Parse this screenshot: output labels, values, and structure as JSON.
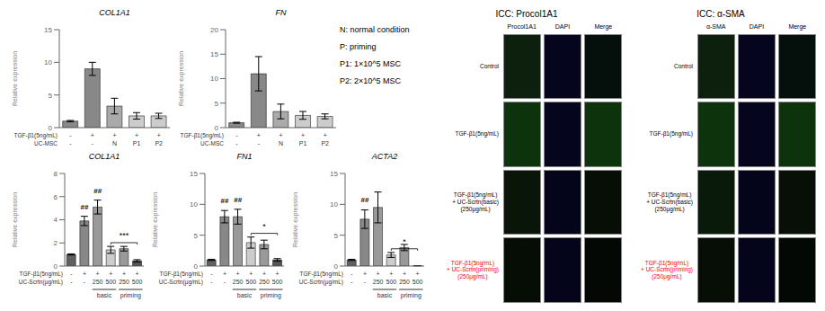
{
  "chart_data": [
    {
      "type": "bar",
      "title": "COL1A1",
      "y_label": "Relative expression",
      "categories": [
        [
          "-",
          "-"
        ],
        [
          "+",
          "-"
        ],
        [
          "+",
          "N"
        ],
        [
          "+",
          "P1"
        ],
        [
          "+",
          "P2"
        ]
      ],
      "category_rows": [
        "TGF-β1(5ng/mL)",
        "UC-MSC"
      ],
      "values": [
        1.0,
        9.0,
        3.3,
        1.8,
        1.8
      ],
      "errors": [
        0.1,
        1.0,
        1.2,
        0.5,
        0.4
      ],
      "colors": [
        "#888888",
        "#888888",
        "#aaaaaa",
        "#cccccc",
        "#cccccc"
      ],
      "ylim": [
        0,
        15
      ],
      "yticks": [
        0,
        5,
        10,
        15
      ]
    },
    {
      "type": "bar",
      "title": "FN",
      "y_label": "Relative expression",
      "categories": [
        [
          "-",
          "-"
        ],
        [
          "+",
          "-"
        ],
        [
          "+",
          "N"
        ],
        [
          "+",
          "P1"
        ],
        [
          "+",
          "P2"
        ]
      ],
      "category_rows": [
        "TGF-β1(5ng/mL)",
        "UC-MSC"
      ],
      "values": [
        1.0,
        11.0,
        3.3,
        2.5,
        2.3
      ],
      "errors": [
        0.1,
        3.5,
        1.5,
        0.8,
        0.5
      ],
      "colors": [
        "#888888",
        "#888888",
        "#aaaaaa",
        "#cccccc",
        "#cccccc"
      ],
      "ylim": [
        0,
        20
      ],
      "yticks": [
        0,
        5,
        10,
        15,
        20
      ]
    },
    {
      "type": "text",
      "lines": [
        "N: normal condition",
        "P: priming",
        "P1: 1×10^5 MSC",
        "P2: 2×10^5 MSC"
      ]
    },
    {
      "type": "bar",
      "title": "COL1A1",
      "y_label": "Relative expression",
      "categories": [
        [
          "-",
          "-"
        ],
        [
          "+",
          "-"
        ],
        [
          "+",
          "250"
        ],
        [
          "+",
          "500"
        ],
        [
          "+",
          "250"
        ],
        [
          "+",
          "500"
        ]
      ],
      "category_rows": [
        "TGF-β1(5ng/mL)",
        "UC-Scrtn(μg/mL)"
      ],
      "values": [
        1.0,
        3.9,
        5.1,
        1.4,
        1.5,
        0.45
      ],
      "errors": [
        0.05,
        0.4,
        0.6,
        0.3,
        0.2,
        0.1
      ],
      "colors": [
        "#606060",
        "#888888",
        "#999999",
        "#cccccc",
        "#999999",
        "#555555"
      ],
      "ylim": [
        0,
        8
      ],
      "yticks": [
        0,
        2,
        4,
        6,
        8
      ],
      "significance": {
        "text": "***",
        "from": 3,
        "to": 5
      },
      "hash": {
        "text": "##",
        "bars": [
          1,
          2
        ]
      },
      "groups": [
        {
          "label": "basic",
          "from": 2,
          "to": 3
        },
        {
          "label": "priming",
          "from": 4,
          "to": 5
        }
      ]
    },
    {
      "type": "bar",
      "title": "FN1",
      "y_label": "Relative expression",
      "categories": [
        [
          "-",
          "-"
        ],
        [
          "+",
          "-"
        ],
        [
          "+",
          "250"
        ],
        [
          "+",
          "500"
        ],
        [
          "+",
          "250"
        ],
        [
          "+",
          "500"
        ]
      ],
      "category_rows": [
        "TGF-β1(5ng/mL)",
        "UC-Scrtn(μg/mL)"
      ],
      "values": [
        1.0,
        8.0,
        8.0,
        3.8,
        3.5,
        1.0
      ],
      "errors": [
        0.1,
        1.0,
        1.2,
        0.9,
        0.7,
        0.2
      ],
      "colors": [
        "#606060",
        "#888888",
        "#999999",
        "#cccccc",
        "#999999",
        "#555555"
      ],
      "ylim": [
        0,
        15
      ],
      "yticks": [
        0,
        5,
        10,
        15
      ],
      "significance": {
        "text": "*",
        "from": 3,
        "to": 5
      },
      "hash": {
        "text": "##",
        "bars": [
          1,
          2
        ]
      },
      "groups": [
        {
          "label": "basic",
          "from": 2,
          "to": 3
        },
        {
          "label": "priming",
          "from": 4,
          "to": 5
        }
      ]
    },
    {
      "type": "bar",
      "title": "ACTA2",
      "y_label": "Relative expression",
      "categories": [
        [
          "-",
          "-"
        ],
        [
          "+",
          "-"
        ],
        [
          "+",
          "250"
        ],
        [
          "+",
          "500"
        ],
        [
          "+",
          "250"
        ],
        [
          "+",
          "500"
        ]
      ],
      "category_rows": [
        "TGF-β1(5ng/mL)",
        "UC-Scrtn(μg/mL)"
      ],
      "values": [
        1.0,
        7.6,
        9.5,
        1.8,
        3.0,
        0.05
      ],
      "errors": [
        0.1,
        1.5,
        2.5,
        0.4,
        0.5,
        0.02
      ],
      "colors": [
        "#606060",
        "#888888",
        "#999999",
        "#cccccc",
        "#999999",
        "#555555"
      ],
      "ylim": [
        0,
        15
      ],
      "yticks": [
        0,
        5,
        10,
        15
      ],
      "significance": {
        "text": "*",
        "from": 3,
        "to": 5
      },
      "hash": {
        "text": "##",
        "bars": [
          1
        ]
      },
      "groups": [
        {
          "label": "basic",
          "from": 2,
          "to": 3
        },
        {
          "label": "priming",
          "from": 4,
          "to": 5
        }
      ]
    },
    {
      "type": "image_grid",
      "title": "ICC: Procol1A1",
      "col_labels": [
        "Procol1A1",
        "DAPI",
        "Merge"
      ],
      "row_labels": [
        "Control",
        "TGF-β1(5ng/mL)",
        "TGF-β1(5ng/mL)\n+ UC-Scrtn(basic)\n(250μg/mL)",
        "TGF-β1(5ng/mL)\n+ UC-Scrtn(priming)\n(250μg/mL)"
      ],
      "row_colors": [
        "black",
        "black",
        "black",
        "red"
      ],
      "cell_colors": [
        [
          "#0d1f0d",
          "#05051e",
          "#05100d"
        ],
        [
          "#0d330d",
          "#05051e",
          "#0d330d"
        ],
        [
          "#081508",
          "#04041a",
          "#060e06"
        ],
        [
          "#050d05",
          "#04041a",
          "#040804"
        ]
      ]
    },
    {
      "type": "image_grid",
      "title": "ICC: α-SMA",
      "col_labels": [
        "α-SMA",
        "DAPI",
        "Merge"
      ],
      "row_labels": [
        "Control",
        "TGF-β1(5ng/mL)",
        "TGF-β1(5ng/mL)\n+ UC-Scrtn(basic)\n(250μg/mL)",
        "TGF-β1(5ng/mL)\n+ UC-Scrtn(priming)\n(250μg/mL)"
      ],
      "row_colors": [
        "black",
        "black",
        "black",
        "red"
      ],
      "cell_colors": [
        [
          "#0d1f0d",
          "#05051e",
          "#05100d"
        ],
        [
          "#0d330d",
          "#05051e",
          "#0d330d"
        ],
        [
          "#0a1a0a",
          "#04041a",
          "#070f07"
        ],
        [
          "#060e06",
          "#04041a",
          "#040804"
        ]
      ]
    }
  ]
}
